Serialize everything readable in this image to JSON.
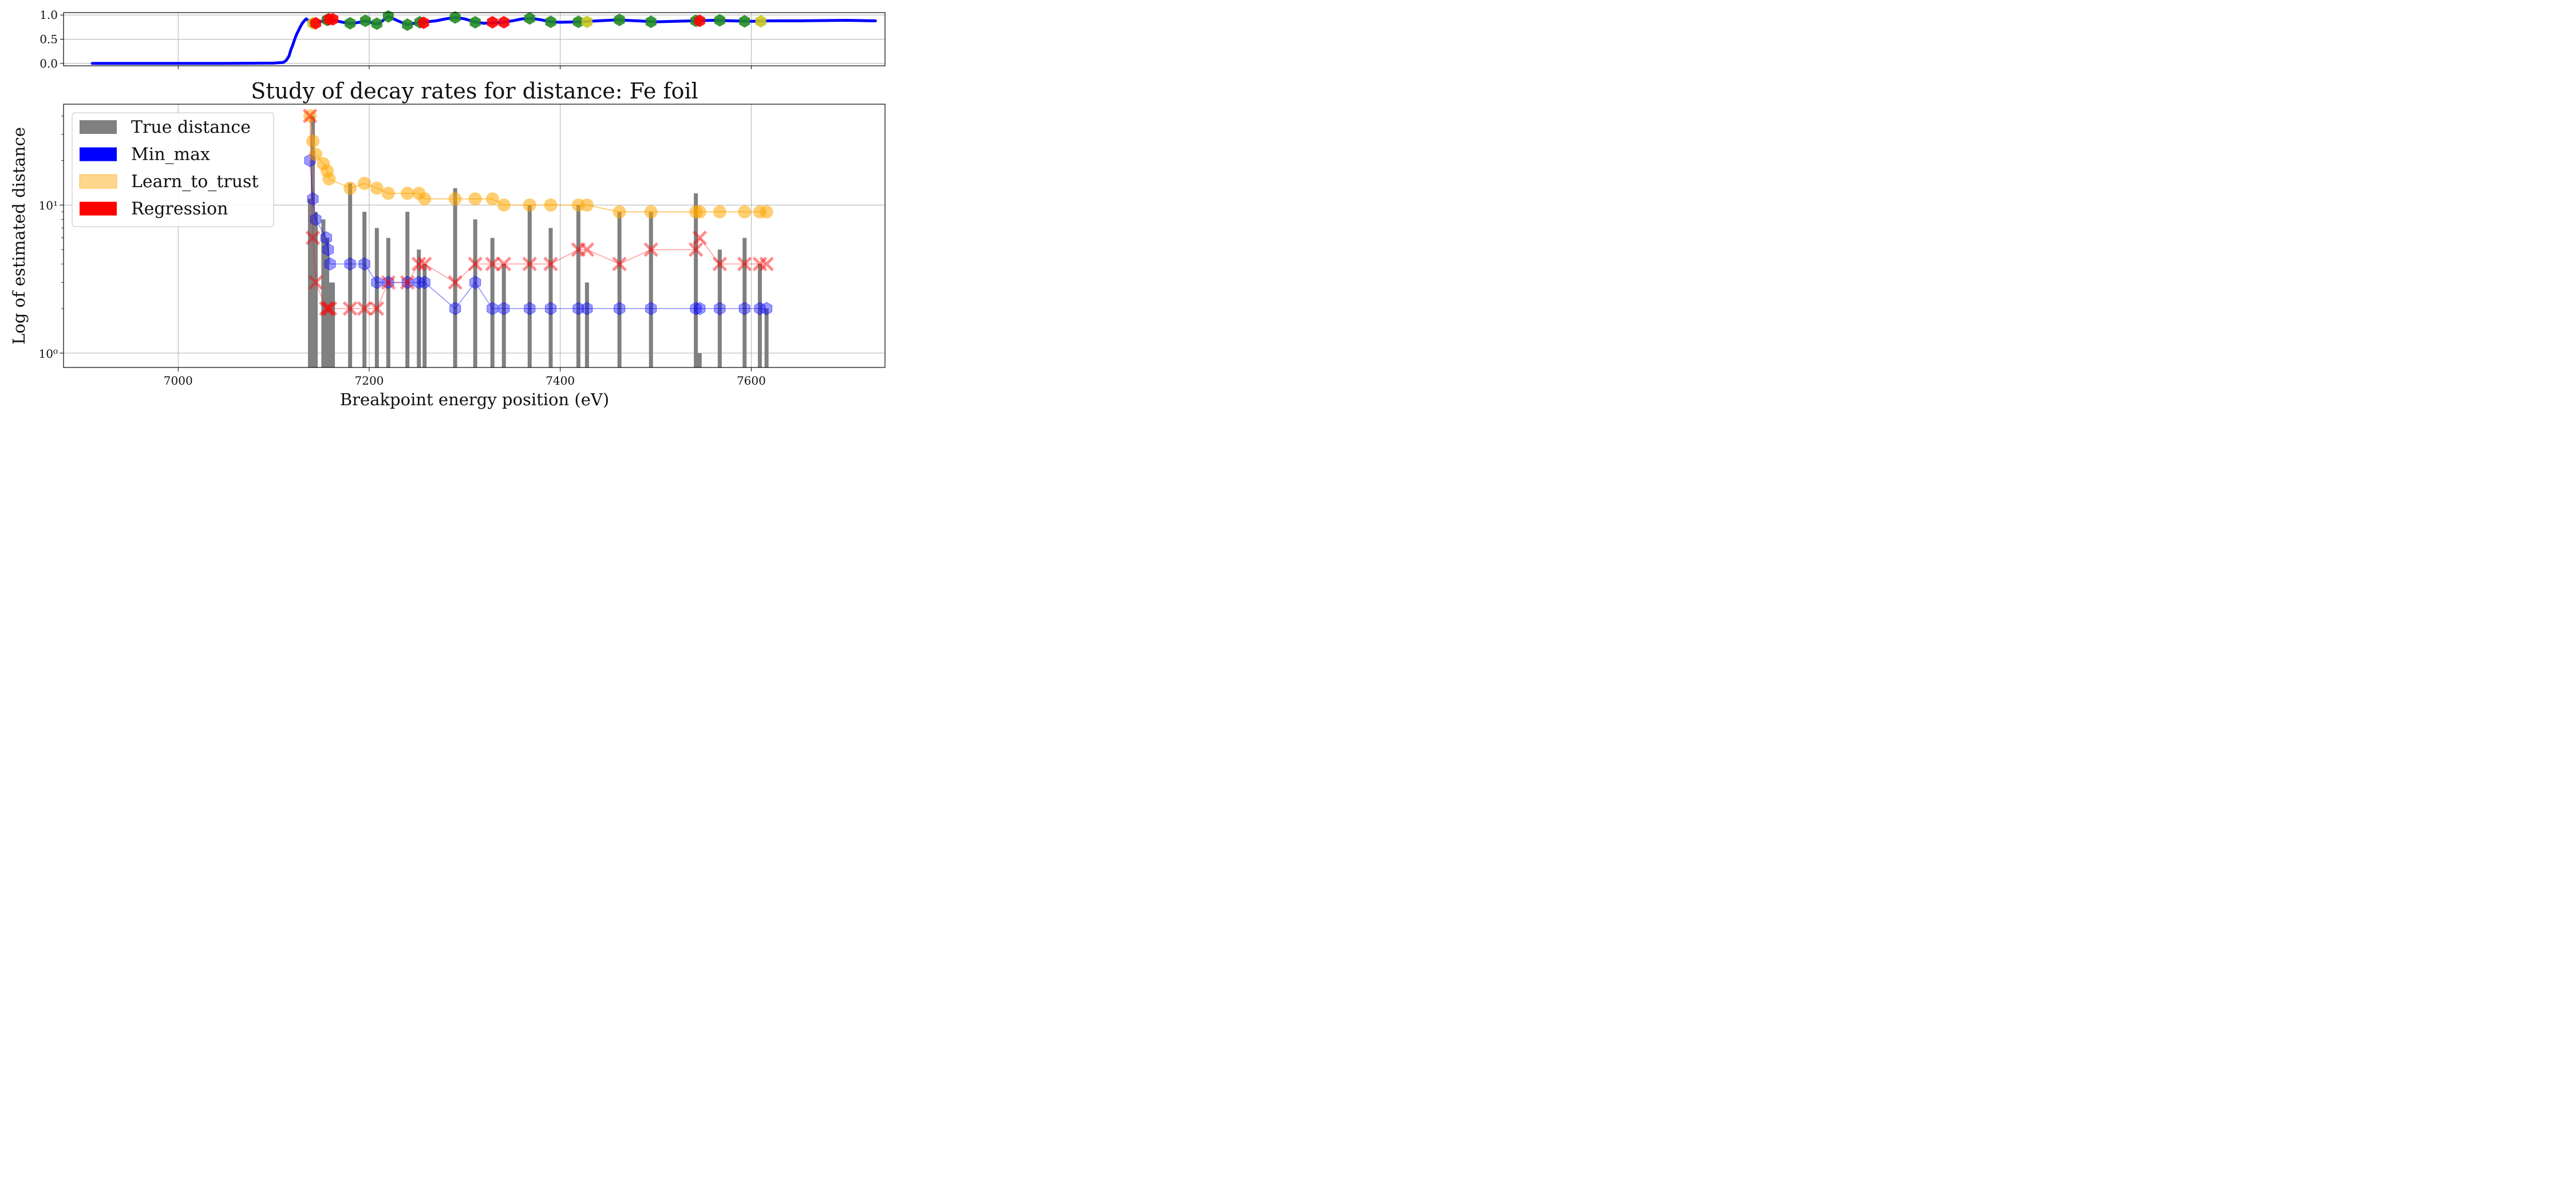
{
  "colors": {
    "true_distance": "#808080",
    "min_max": "#0000ff",
    "learn_to_trust": "#ffa500",
    "regression": "#ff0000",
    "spectrum_line": "#0000ff",
    "marker_green": "#228b22",
    "marker_red": "#ff0000",
    "marker_yellow": "#c8c820",
    "grid": "#b0b0b0"
  },
  "chart_data": [
    {
      "type": "line",
      "panel": "top",
      "xlim": [
        6880,
        7740
      ],
      "ylim": [
        -0.05,
        1.05
      ],
      "yticks": [
        0.0,
        0.5,
        1.0
      ],
      "ytick_labels": [
        "0.0",
        "0.5",
        "1.0"
      ],
      "xticks": [
        7000,
        7200,
        7400,
        7600
      ],
      "grid": true,
      "spectrum": {
        "x": [
          6910,
          6950,
          7000,
          7050,
          7100,
          7110,
          7113,
          7116,
          7118,
          7120,
          7122,
          7124,
          7126,
          7128,
          7130,
          7132,
          7134,
          7136,
          7138,
          7140,
          7145,
          7150,
          7160,
          7170,
          7180,
          7190,
          7195,
          7200,
          7205,
          7210,
          7220,
          7230,
          7240,
          7250,
          7260,
          7270,
          7280,
          7290,
          7300,
          7310,
          7320,
          7330,
          7340,
          7350,
          7360,
          7370,
          7380,
          7390,
          7400,
          7420,
          7430,
          7440,
          7460,
          7480,
          7500,
          7520,
          7540,
          7560,
          7580,
          7600,
          7620,
          7650,
          7700,
          7730
        ],
        "y": [
          0.0,
          0.0,
          0.0,
          0.0,
          0.005,
          0.02,
          0.06,
          0.15,
          0.28,
          0.38,
          0.5,
          0.6,
          0.68,
          0.76,
          0.83,
          0.88,
          0.92,
          0.89,
          0.84,
          0.84,
          0.85,
          0.87,
          0.9,
          0.86,
          0.82,
          0.85,
          0.88,
          0.86,
          0.82,
          0.82,
          0.97,
          0.88,
          0.8,
          0.84,
          0.86,
          0.88,
          0.92,
          0.95,
          0.92,
          0.86,
          0.83,
          0.84,
          0.85,
          0.88,
          0.92,
          0.93,
          0.9,
          0.86,
          0.85,
          0.86,
          0.87,
          0.88,
          0.9,
          0.88,
          0.86,
          0.87,
          0.88,
          0.89,
          0.88,
          0.87,
          0.88,
          0.88,
          0.89,
          0.88
        ]
      },
      "markers": [
        {
          "x": 7141,
          "y": 0.83,
          "color": "yellow"
        },
        {
          "x": 7144,
          "y": 0.83,
          "color": "red"
        },
        {
          "x": 7156,
          "y": 0.9,
          "color": "green"
        },
        {
          "x": 7158,
          "y": 0.91,
          "color": "red"
        },
        {
          "x": 7162,
          "y": 0.91,
          "color": "red"
        },
        {
          "x": 7180,
          "y": 0.83,
          "color": "green"
        },
        {
          "x": 7196,
          "y": 0.88,
          "color": "green"
        },
        {
          "x": 7208,
          "y": 0.82,
          "color": "green"
        },
        {
          "x": 7220,
          "y": 0.97,
          "color": "green"
        },
        {
          "x": 7240,
          "y": 0.8,
          "color": "green"
        },
        {
          "x": 7253,
          "y": 0.85,
          "color": "green"
        },
        {
          "x": 7257,
          "y": 0.84,
          "color": "red"
        },
        {
          "x": 7290,
          "y": 0.95,
          "color": "green"
        },
        {
          "x": 7311,
          "y": 0.85,
          "color": "green"
        },
        {
          "x": 7329,
          "y": 0.85,
          "color": "red"
        },
        {
          "x": 7341,
          "y": 0.85,
          "color": "red"
        },
        {
          "x": 7368,
          "y": 0.93,
          "color": "green"
        },
        {
          "x": 7390,
          "y": 0.86,
          "color": "green"
        },
        {
          "x": 7419,
          "y": 0.86,
          "color": "green"
        },
        {
          "x": 7428,
          "y": 0.86,
          "color": "yellow"
        },
        {
          "x": 7462,
          "y": 0.9,
          "color": "green"
        },
        {
          "x": 7495,
          "y": 0.86,
          "color": "green"
        },
        {
          "x": 7542,
          "y": 0.88,
          "color": "green"
        },
        {
          "x": 7546,
          "y": 0.88,
          "color": "red"
        },
        {
          "x": 7567,
          "y": 0.89,
          "color": "green"
        },
        {
          "x": 7593,
          "y": 0.87,
          "color": "green"
        },
        {
          "x": 7610,
          "y": 0.87,
          "color": "yellow"
        }
      ]
    },
    {
      "type": "bar",
      "panel": "bottom",
      "title": "Study of decay rates for distance: Fe foil",
      "xlabel": "Breakpoint energy position (eV)",
      "ylabel": "Log of estimated distance",
      "yscale": "log",
      "xlim": [
        6880,
        7740
      ],
      "ylim": [
        0.8,
        48
      ],
      "xticks": [
        7000,
        7200,
        7400,
        7600
      ],
      "xtick_labels": [
        "7000",
        "7200",
        "7400",
        "7600"
      ],
      "yticks": [
        1,
        10
      ],
      "ytick_labels": [
        "10⁰",
        "10¹"
      ],
      "grid": true,
      "legend": {
        "placement": "top-left",
        "entries": [
          "True distance",
          "Min_max",
          "Learn_to_trust",
          "Regression"
        ]
      },
      "bars": {
        "name": "True distance",
        "x": [
          7138,
          7141,
          7144,
          7152,
          7156,
          7160,
          7162,
          7180,
          7195,
          7208,
          7220,
          7240,
          7252,
          7258,
          7290,
          7311,
          7329,
          7341,
          7368,
          7390,
          7419,
          7428,
          7462,
          7495,
          7542,
          7546,
          7567,
          7593,
          7609,
          7616
        ],
        "values": [
          11,
          40,
          9,
          8,
          6,
          3,
          3,
          14,
          9,
          7,
          6,
          9,
          5,
          4,
          13,
          8,
          6,
          4,
          10,
          7,
          10,
          3,
          9,
          9,
          12,
          1,
          5,
          6,
          4,
          2
        ]
      },
      "series": [
        {
          "name": "Min_max",
          "x": [
            7138,
            7141,
            7144,
            7155,
            7157,
            7159,
            7180,
            7195,
            7208,
            7220,
            7240,
            7252,
            7258,
            7290,
            7311,
            7329,
            7341,
            7368,
            7390,
            7419,
            7428,
            7462,
            7495,
            7542,
            7546,
            7567,
            7593,
            7609,
            7616
          ],
          "values": [
            20,
            11,
            8,
            6,
            5,
            4,
            4,
            4,
            3,
            3,
            3,
            3,
            3,
            2,
            3,
            2,
            2,
            2,
            2,
            2,
            2,
            2,
            2,
            2,
            2,
            2,
            2,
            2,
            2
          ]
        },
        {
          "name": "Learn_to_trust",
          "x": [
            7138,
            7141,
            7144,
            7152,
            7156,
            7158,
            7180,
            7195,
            7208,
            7220,
            7240,
            7252,
            7258,
            7290,
            7311,
            7329,
            7341,
            7368,
            7390,
            7419,
            7428,
            7462,
            7495,
            7542,
            7546,
            7567,
            7593,
            7609,
            7616
          ],
          "values": [
            40,
            27,
            22,
            19,
            17,
            15,
            13,
            14,
            13,
            12,
            12,
            12,
            11,
            11,
            11,
            11,
            10,
            10,
            10,
            10,
            10,
            9,
            9,
            9,
            9,
            9,
            9,
            9,
            9
          ]
        },
        {
          "name": "Regression",
          "x": [
            7138,
            7141,
            7144,
            7155,
            7157,
            7159,
            7180,
            7195,
            7208,
            7220,
            7240,
            7252,
            7258,
            7290,
            7311,
            7329,
            7341,
            7368,
            7390,
            7419,
            7428,
            7462,
            7495,
            7542,
            7546,
            7567,
            7593,
            7609,
            7616
          ],
          "values": [
            40,
            6,
            3,
            2,
            2,
            2,
            2,
            2,
            2,
            3,
            3,
            4,
            4,
            3,
            4,
            4,
            4,
            4,
            4,
            5,
            5,
            4,
            5,
            5,
            6,
            4,
            4,
            4,
            4
          ]
        }
      ]
    }
  ]
}
